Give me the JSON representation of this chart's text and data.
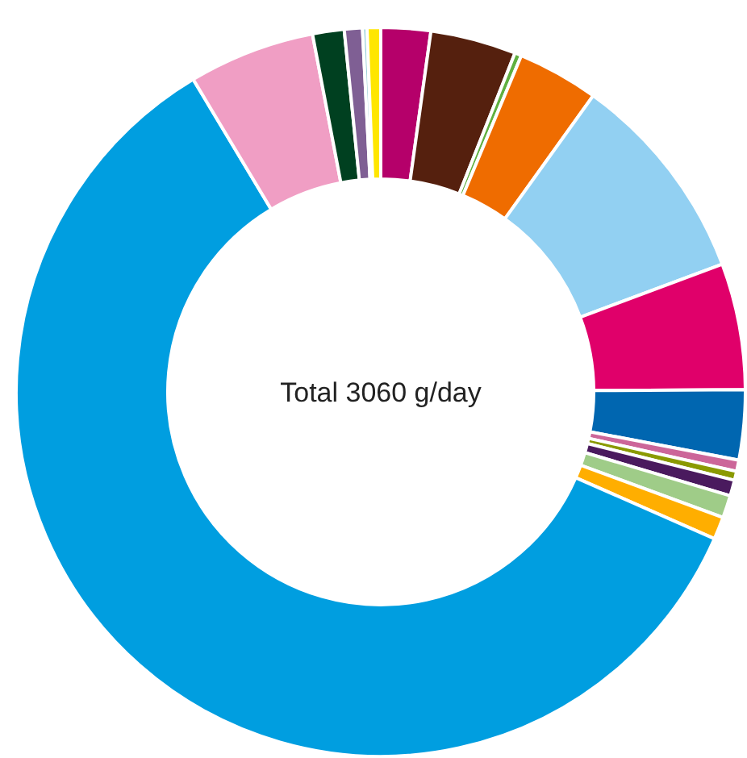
{
  "chart_data": {
    "type": "donut",
    "annotations": [
      "Total 3060 g/day"
    ],
    "categories": [
      null,
      null,
      null,
      null,
      null,
      null,
      null,
      null,
      null,
      null,
      null,
      null,
      null,
      null,
      null,
      null,
      null,
      null
    ],
    "values": [
      2.2,
      3.8,
      0.3,
      3.6,
      9.4,
      5.6,
      3.1,
      0.5,
      0.4,
      0.7,
      1.0,
      1.0,
      59.8,
      5.6,
      1.4,
      0.8,
      0.2,
      0.6
    ],
    "colors": [
      "#b5006a",
      "#55200e",
      "#5fb040",
      "#ef6c00",
      "#92d0f2",
      "#e0006a",
      "#0066b0",
      "#cc6699",
      "#8a9a00",
      "#4a1a5e",
      "#9fcc88",
      "#ffae00",
      "#009ee0",
      "#f09ec4",
      "#004020",
      "#7f5f94",
      "#9ad0d8",
      "#ffe600"
    ]
  }
}
